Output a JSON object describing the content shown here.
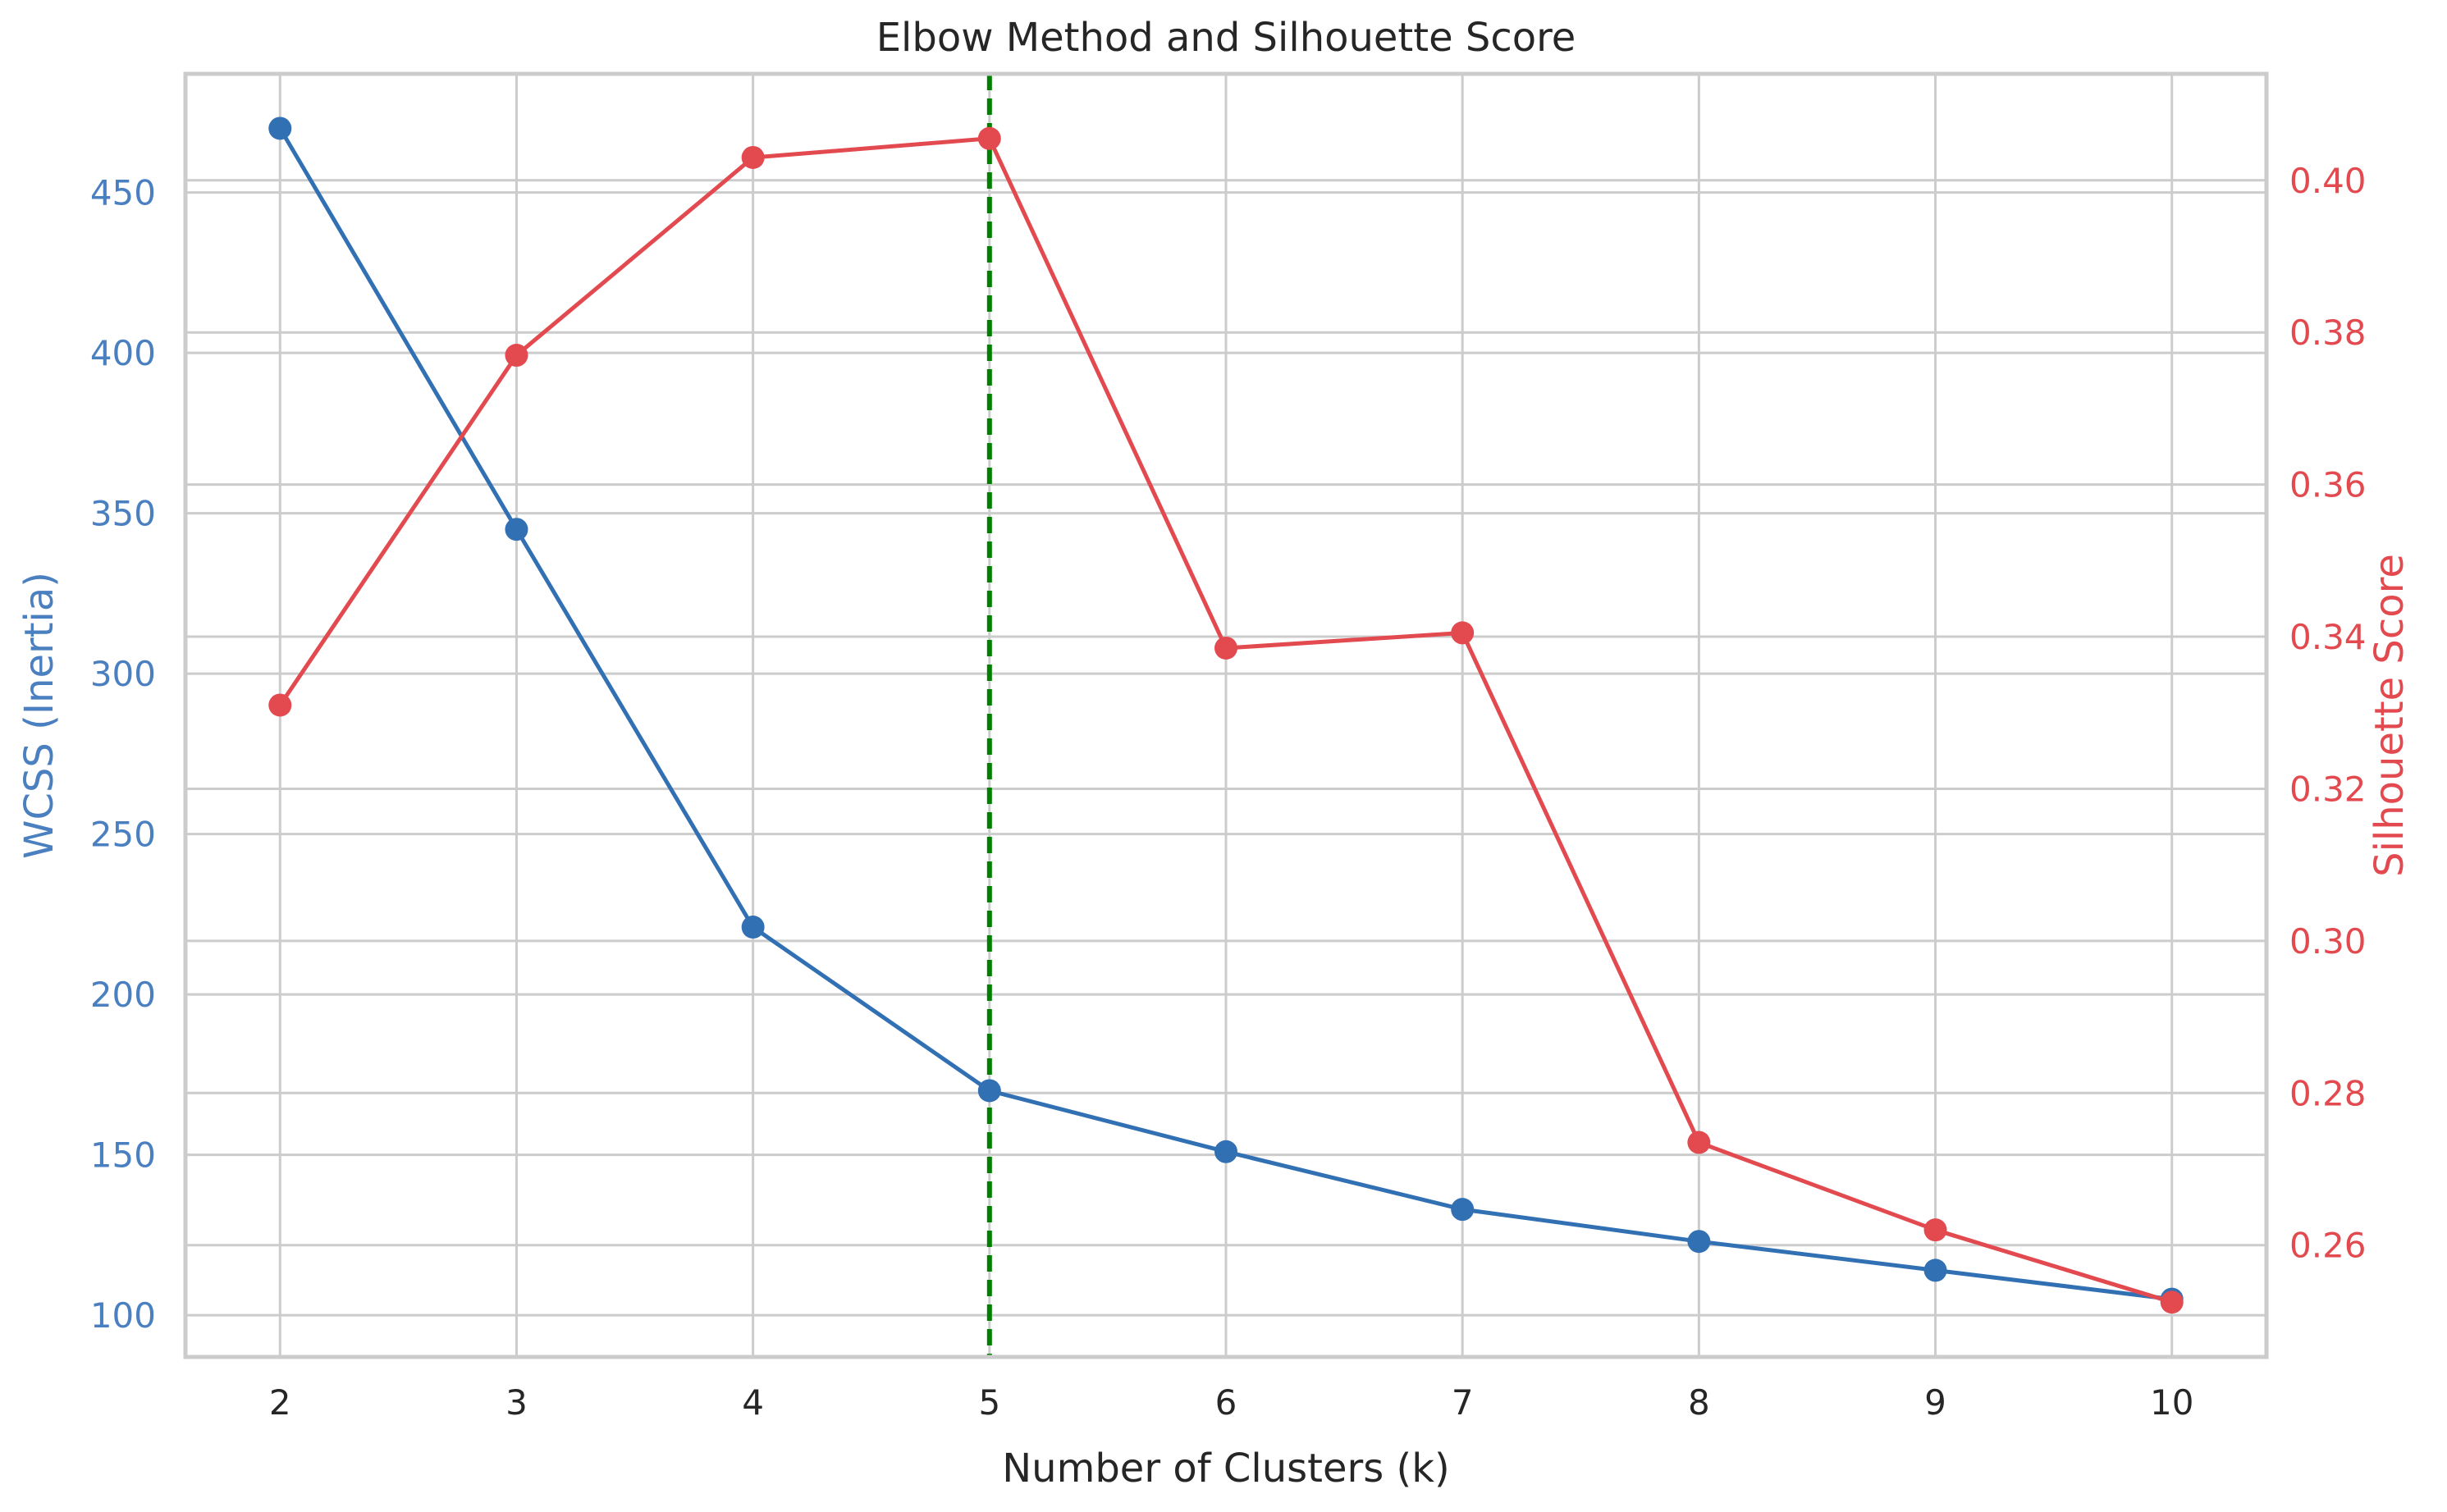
{
  "chart_data": {
    "type": "line",
    "title": "Elbow Method and Silhouette Score",
    "xlabel": "Number of Clusters (k)",
    "x": [
      2,
      3,
      4,
      5,
      6,
      7,
      8,
      9,
      10
    ],
    "x_ticks": [
      2,
      3,
      4,
      5,
      6,
      7,
      8,
      9,
      10
    ],
    "xlim": [
      1.6,
      10.4
    ],
    "left_axis": {
      "label": "WCSS (Inertia)",
      "color": "#4a7fc0",
      "ticks": [
        100,
        150,
        200,
        250,
        300,
        350,
        400,
        450
      ],
      "ylim": [
        87.0,
        487.0
      ]
    },
    "right_axis": {
      "label": "Silhouette Score",
      "color": "#e24a4f",
      "ticks": [
        0.26,
        0.28,
        0.3,
        0.32,
        0.34,
        0.36,
        0.38,
        0.4
      ],
      "tick_labels": [
        "0.26",
        "0.28",
        "0.30",
        "0.32",
        "0.34",
        "0.36",
        "0.38",
        "0.40"
      ],
      "ylim": [
        0.2453,
        0.414
      ]
    },
    "series": [
      {
        "axis": "left",
        "color": "#3270b4",
        "marker": "circle",
        "values": [
          470,
          345,
          221,
          170,
          151,
          133,
          123,
          114,
          105
        ]
      },
      {
        "axis": "right",
        "color": "#e24a4f",
        "marker": "circle",
        "values": [
          0.331,
          0.377,
          0.403,
          0.4055,
          0.3385,
          0.3405,
          0.2735,
          0.262,
          0.2525
        ]
      }
    ],
    "vline": {
      "x": 5,
      "color": "#008000",
      "style": "dashed"
    },
    "grid": true
  }
}
